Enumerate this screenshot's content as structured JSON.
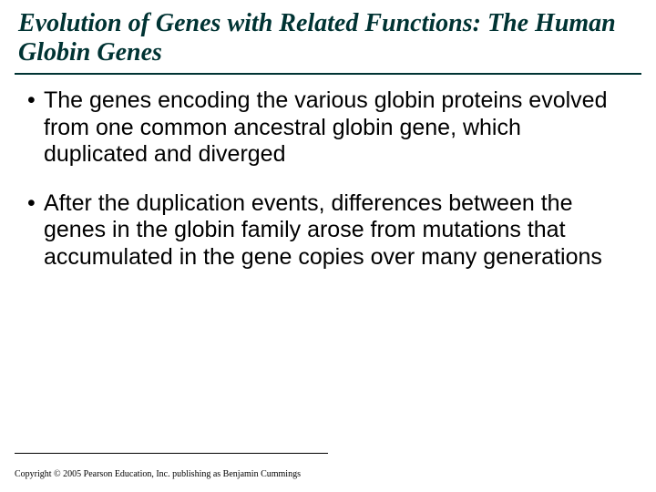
{
  "title": "Evolution of Genes with Related Functions: The Human Globin Genes",
  "title_color": "#003333",
  "title_fontsize": 28,
  "title_font": "Times New Roman italic bold",
  "rule_color": "#003333",
  "background_color": "#ffffff",
  "bullets": [
    "The genes encoding the various globin proteins evolved from one common ancestral globin gene, which duplicated and diverged",
    "After the duplication events, differences between the genes in the globin family arose from mutations that accumulated in the gene copies over many generations"
  ],
  "bullet_fontsize": 25,
  "bullet_color": "#000000",
  "copyright": "Copyright © 2005 Pearson Education, Inc. publishing as Benjamin Cummings",
  "copyright_fontsize": 10
}
